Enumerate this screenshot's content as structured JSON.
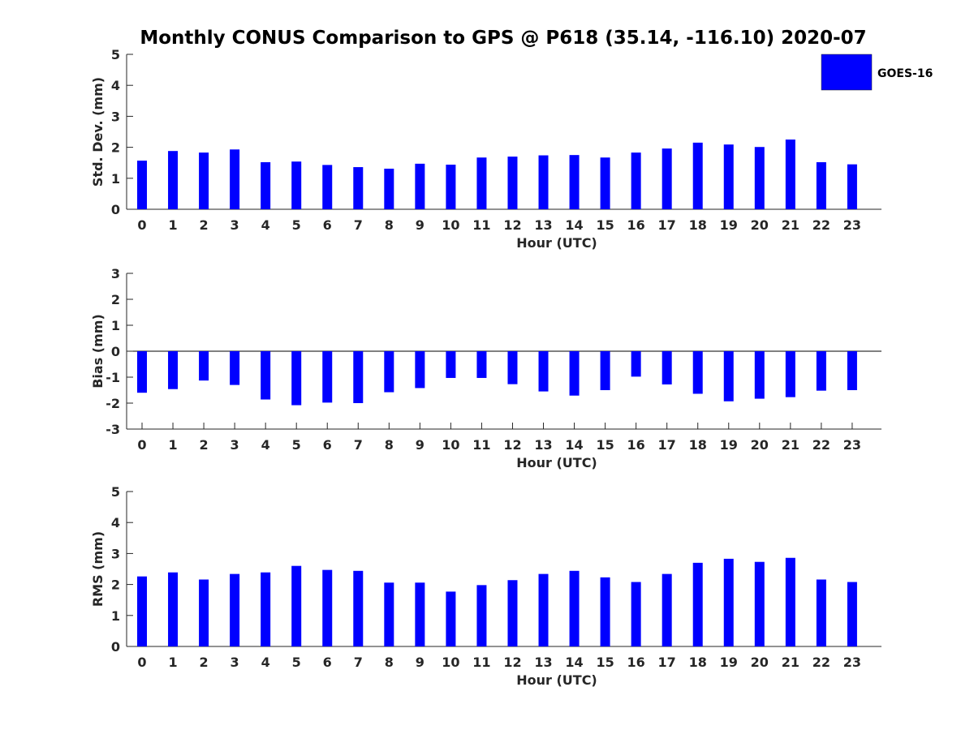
{
  "figure": {
    "title": "Monthly CONUS Comparison to GPS @ P618 (35.14, -116.10) 2020-07",
    "legend": {
      "label": "GOES-16",
      "color": "#0000ff",
      "placement": "top-right"
    }
  },
  "chart_data": [
    {
      "type": "bar",
      "ylabel": "Std. Dev. (mm)",
      "xlabel": "Hour (UTC)",
      "ylim": [
        0,
        5
      ],
      "yticks": [
        0,
        1,
        2,
        3,
        4,
        5
      ],
      "categories": [
        "0",
        "1",
        "2",
        "3",
        "4",
        "5",
        "6",
        "7",
        "8",
        "9",
        "10",
        "11",
        "12",
        "13",
        "14",
        "15",
        "16",
        "17",
        "18",
        "19",
        "20",
        "21",
        "22",
        "23"
      ],
      "series": [
        {
          "name": "GOES-16",
          "color": "#0000ff",
          "values": [
            1.57,
            1.88,
            1.83,
            1.93,
            1.52,
            1.54,
            1.43,
            1.36,
            1.31,
            1.47,
            1.44,
            1.67,
            1.7,
            1.74,
            1.75,
            1.67,
            1.83,
            1.96,
            2.15,
            2.09,
            2.01,
            2.25,
            1.52,
            1.45
          ]
        }
      ]
    },
    {
      "type": "bar",
      "ylabel": "Bias (mm)",
      "xlabel": "Hour (UTC)",
      "ylim": [
        -3,
        3
      ],
      "yticks": [
        -3,
        -2,
        -1,
        0,
        1,
        2,
        3
      ],
      "categories": [
        "0",
        "1",
        "2",
        "3",
        "4",
        "5",
        "6",
        "7",
        "8",
        "9",
        "10",
        "11",
        "12",
        "13",
        "14",
        "15",
        "16",
        "17",
        "18",
        "19",
        "20",
        "21",
        "22",
        "23"
      ],
      "series": [
        {
          "name": "GOES-16",
          "color": "#0000ff",
          "values": [
            -1.6,
            -1.46,
            -1.13,
            -1.3,
            -1.86,
            -2.08,
            -1.98,
            -2.0,
            -1.58,
            -1.42,
            -1.03,
            -1.03,
            -1.27,
            -1.55,
            -1.71,
            -1.5,
            -0.98,
            -1.28,
            -1.64,
            -1.93,
            -1.83,
            -1.77,
            -1.52,
            -1.5
          ]
        }
      ]
    },
    {
      "type": "bar",
      "ylabel": "RMS (mm)",
      "xlabel": "Hour (UTC)",
      "ylim": [
        0,
        5
      ],
      "yticks": [
        0,
        1,
        2,
        3,
        4,
        5
      ],
      "categories": [
        "0",
        "1",
        "2",
        "3",
        "4",
        "5",
        "6",
        "7",
        "8",
        "9",
        "10",
        "11",
        "12",
        "13",
        "14",
        "15",
        "16",
        "17",
        "18",
        "19",
        "20",
        "21",
        "22",
        "23"
      ],
      "series": [
        {
          "name": "GOES-16",
          "color": "#0000ff",
          "values": [
            2.26,
            2.39,
            2.16,
            2.34,
            2.39,
            2.6,
            2.47,
            2.44,
            2.06,
            2.06,
            1.77,
            1.98,
            2.14,
            2.34,
            2.44,
            2.23,
            2.08,
            2.34,
            2.7,
            2.83,
            2.73,
            2.86,
            2.16,
            2.08
          ]
        }
      ]
    }
  ]
}
